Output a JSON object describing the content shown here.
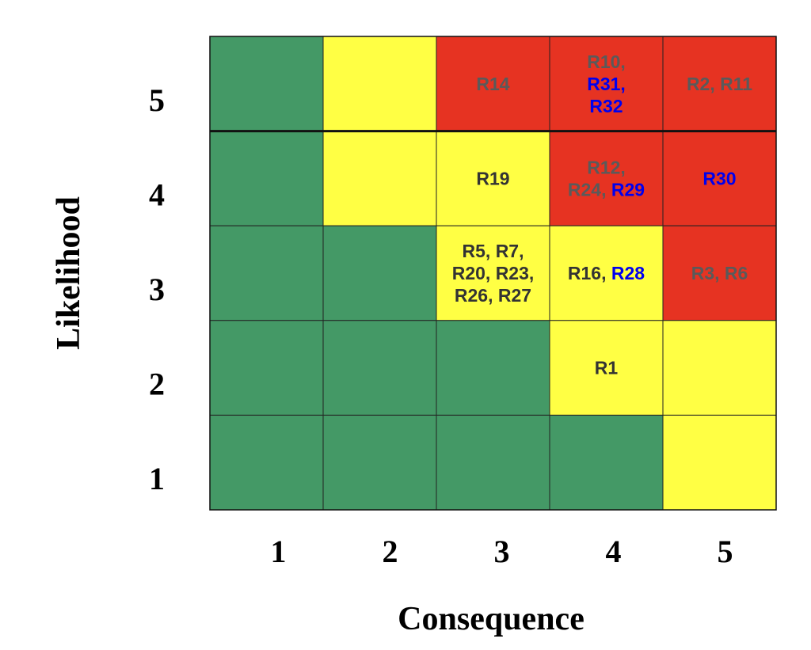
{
  "chart_data": {
    "type": "heatmap",
    "xlabel": "Consequence",
    "ylabel": "Likelihood",
    "x_ticks": [
      "1",
      "2",
      "3",
      "4",
      "5"
    ],
    "y_ticks": [
      "1",
      "2",
      "3",
      "4",
      "5"
    ],
    "colors": {
      "green": "#449966",
      "yellow": "#ffff44",
      "red": "#e63322",
      "gray_label": "#5a5a5a",
      "blue_label": "#0000ee",
      "black_label": "#333333"
    },
    "cells": [
      {
        "likelihood": 5,
        "consequence": 1,
        "color": "green",
        "risks": []
      },
      {
        "likelihood": 5,
        "consequence": 2,
        "color": "yellow",
        "risks": []
      },
      {
        "likelihood": 5,
        "consequence": 3,
        "color": "red",
        "risks": [
          {
            "id": "R14",
            "color": "gray"
          }
        ]
      },
      {
        "likelihood": 5,
        "consequence": 4,
        "color": "red",
        "risks": [
          {
            "id": "R10",
            "color": "gray"
          },
          {
            "id": "R31",
            "color": "blue"
          },
          {
            "id": "R32",
            "color": "blue"
          }
        ]
      },
      {
        "likelihood": 5,
        "consequence": 5,
        "color": "red",
        "risks": [
          {
            "id": "R2",
            "color": "gray"
          },
          {
            "id": "R11",
            "color": "gray"
          }
        ]
      },
      {
        "likelihood": 4,
        "consequence": 1,
        "color": "green",
        "risks": []
      },
      {
        "likelihood": 4,
        "consequence": 2,
        "color": "yellow",
        "risks": []
      },
      {
        "likelihood": 4,
        "consequence": 3,
        "color": "yellow",
        "risks": [
          {
            "id": "R19",
            "color": "black"
          }
        ]
      },
      {
        "likelihood": 4,
        "consequence": 4,
        "color": "red",
        "risks": [
          {
            "id": "R12",
            "color": "gray"
          },
          {
            "id": "R24",
            "color": "gray"
          },
          {
            "id": "R29",
            "color": "blue"
          }
        ]
      },
      {
        "likelihood": 4,
        "consequence": 5,
        "color": "red",
        "risks": [
          {
            "id": "R30",
            "color": "blue"
          }
        ]
      },
      {
        "likelihood": 3,
        "consequence": 1,
        "color": "green",
        "risks": []
      },
      {
        "likelihood": 3,
        "consequence": 2,
        "color": "green",
        "risks": []
      },
      {
        "likelihood": 3,
        "consequence": 3,
        "color": "yellow",
        "risks": [
          {
            "id": "R5",
            "color": "black"
          },
          {
            "id": "R7",
            "color": "black"
          },
          {
            "id": "R20",
            "color": "black"
          },
          {
            "id": "R23",
            "color": "black"
          },
          {
            "id": "R26",
            "color": "black"
          },
          {
            "id": "R27",
            "color": "black"
          }
        ]
      },
      {
        "likelihood": 3,
        "consequence": 4,
        "color": "yellow",
        "risks": [
          {
            "id": "R16",
            "color": "black"
          },
          {
            "id": "R28",
            "color": "blue"
          }
        ]
      },
      {
        "likelihood": 3,
        "consequence": 5,
        "color": "red",
        "risks": [
          {
            "id": "R3",
            "color": "gray"
          },
          {
            "id": "R6",
            "color": "gray"
          }
        ]
      },
      {
        "likelihood": 2,
        "consequence": 1,
        "color": "green",
        "risks": []
      },
      {
        "likelihood": 2,
        "consequence": 2,
        "color": "green",
        "risks": []
      },
      {
        "likelihood": 2,
        "consequence": 3,
        "color": "green",
        "risks": []
      },
      {
        "likelihood": 2,
        "consequence": 4,
        "color": "yellow",
        "risks": [
          {
            "id": "R1",
            "color": "black"
          }
        ]
      },
      {
        "likelihood": 2,
        "consequence": 5,
        "color": "yellow",
        "risks": []
      },
      {
        "likelihood": 1,
        "consequence": 1,
        "color": "green",
        "risks": []
      },
      {
        "likelihood": 1,
        "consequence": 2,
        "color": "green",
        "risks": []
      },
      {
        "likelihood": 1,
        "consequence": 3,
        "color": "green",
        "risks": []
      },
      {
        "likelihood": 1,
        "consequence": 4,
        "color": "green",
        "risks": []
      },
      {
        "likelihood": 1,
        "consequence": 5,
        "color": "yellow",
        "risks": []
      }
    ]
  }
}
